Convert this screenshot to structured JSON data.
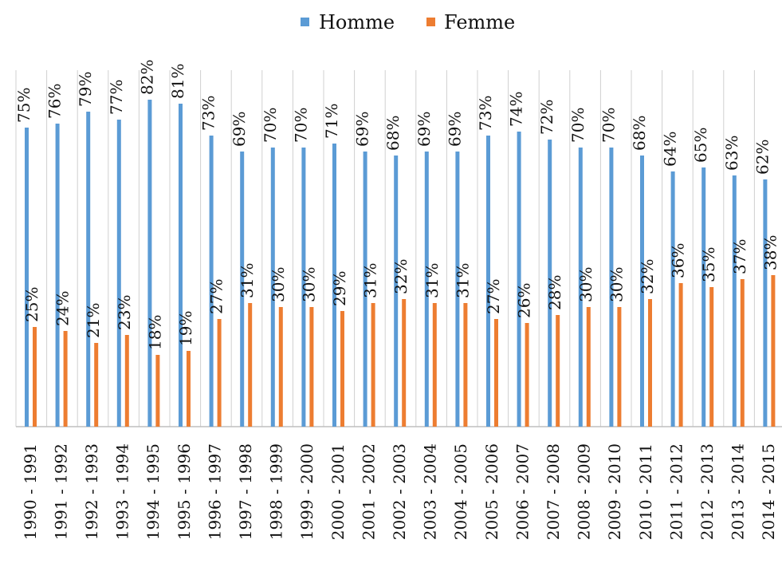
{
  "chart_data": {
    "type": "bar",
    "categories": [
      "1990 - 1991",
      "1991 - 1992",
      "1992 - 1993",
      "1993 - 1994",
      "1994 - 1995",
      "1995 - 1996",
      "1996 - 1997",
      "1997 - 1998",
      "1998 - 1999",
      "1999 - 2000",
      "2000 - 2001",
      "2001 - 2002",
      "2002 - 2003",
      "2003 - 2004",
      "2004 - 2005",
      "2005 - 2006",
      "2006 - 2007",
      "2007 - 2008",
      "2008 - 2009",
      "2009 - 2010",
      "2010 - 2011",
      "2011 - 2012",
      "2012 - 2013",
      "2013 - 2014",
      "2014 - 2015"
    ],
    "series": [
      {
        "name": "Homme",
        "color": "#5b9bd5",
        "values": [
          75,
          76,
          79,
          77,
          82,
          81,
          73,
          69,
          70,
          70,
          71,
          69,
          68,
          69,
          69,
          73,
          74,
          72,
          70,
          70,
          68,
          64,
          65,
          63,
          62
        ],
        "value_labels": [
          "75%",
          "76%",
          "79%",
          "77%",
          "82%",
          "81%",
          "73%",
          "69%",
          "70%",
          "70%",
          "71%",
          "69%",
          "68%",
          "69%",
          "69%",
          "73%",
          "74%",
          "72%",
          "70%",
          "70%",
          "68%",
          "64%",
          "65%",
          "63%",
          "62%"
        ]
      },
      {
        "name": "Femme",
        "color": "#ed7d31",
        "values": [
          25,
          24,
          21,
          23,
          18,
          19,
          27,
          31,
          30,
          30,
          29,
          31,
          32,
          31,
          31,
          27,
          26,
          28,
          30,
          30,
          32,
          36,
          35,
          37,
          38
        ],
        "value_labels": [
          "25%",
          "24%",
          "21%",
          "23%",
          "18%",
          "19%",
          "27%",
          "31%",
          "30%",
          "30%",
          "29%",
          "31%",
          "32%",
          "31%",
          "31%",
          "27%",
          "26%",
          "28%",
          "30%",
          "30%",
          "32%",
          "36%",
          "35%",
          "37%",
          "38%"
        ]
      }
    ],
    "ylim": [
      0,
      100
    ],
    "legend": "top"
  }
}
